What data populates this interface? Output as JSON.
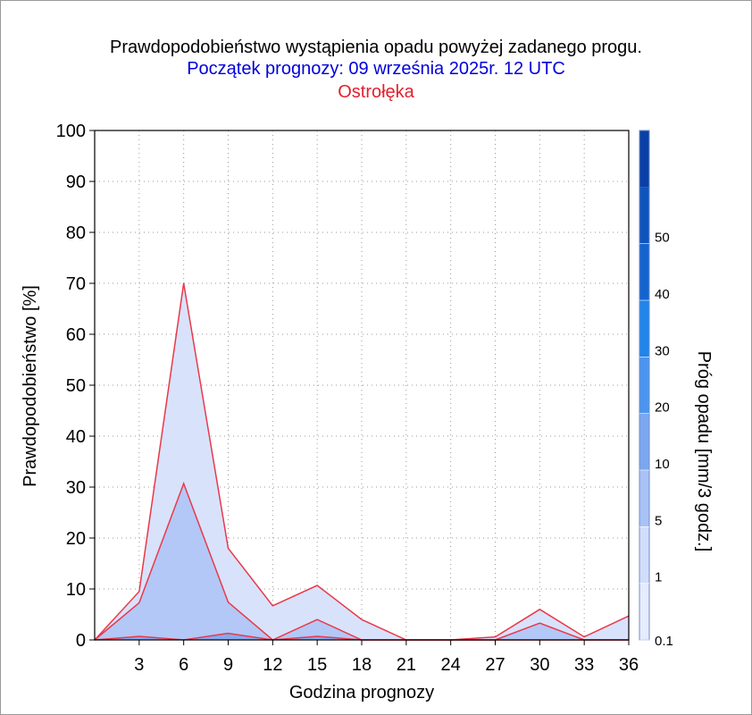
{
  "header": {
    "title": "Prawdopodobieństwo wystąpienia opadu powyżej zadanego progu.",
    "subtitle": "Początek prognozy: 09 września 2025r. 12 UTC",
    "location": "Ostrołęka"
  },
  "colors": {
    "series_line": "#e8394a",
    "title": "#000000",
    "subtitle": "#0000dd",
    "location": "#e2202c"
  },
  "chart_data": {
    "type": "area",
    "xlabel": "Godzina prognozy",
    "ylabel": "Prawdopodobieństwo [%]",
    "colorbar_label": "Próg opadu [mm/3 godz.]",
    "ylim": [
      0,
      100
    ],
    "xlim": [
      0,
      36
    ],
    "x": [
      0,
      3,
      6,
      9,
      12,
      15,
      18,
      21,
      24,
      27,
      30,
      33,
      36
    ],
    "x_tick_labels": [
      "3",
      "6",
      "9",
      "12",
      "15",
      "18",
      "21",
      "24",
      "27",
      "30",
      "33",
      "36"
    ],
    "y_tick_labels": [
      "0",
      "10",
      "20",
      "30",
      "40",
      "50",
      "60",
      "70",
      "80",
      "90",
      "100"
    ],
    "grid": true,
    "series": [
      {
        "threshold": 0.1,
        "color": "#d9e2fb",
        "values": [
          0,
          9.5,
          70,
          18,
          6.7,
          10.7,
          4,
          0,
          0,
          0.6,
          6,
          0.6,
          4.7
        ]
      },
      {
        "threshold": 1,
        "color": "#b3c8f6",
        "values": [
          0,
          7.3,
          30.7,
          7.4,
          0,
          4,
          0,
          0,
          0,
          0,
          3.3,
          0,
          0
        ]
      },
      {
        "threshold": 5,
        "color": "#85a8ef",
        "values": [
          0,
          0.7,
          0,
          1.3,
          0,
          0.7,
          0,
          0,
          0,
          0,
          0,
          0,
          0
        ]
      }
    ],
    "colorbar": {
      "levels": [
        "0.1",
        "1",
        "5",
        "10",
        "20",
        "30",
        "40",
        "50"
      ],
      "colors": [
        "#e6ecfd",
        "#d2ddfb",
        "#a9c2f5",
        "#7ba7f0",
        "#4b95ef",
        "#1f86ea",
        "#1464cf",
        "#0d55bd",
        "#0a3fa6"
      ]
    }
  }
}
